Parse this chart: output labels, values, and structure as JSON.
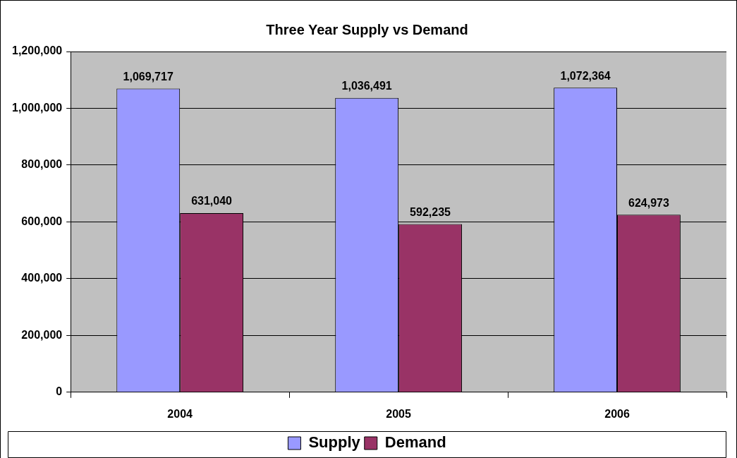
{
  "chart_data": {
    "type": "bar",
    "title": "Three Year Supply vs Demand",
    "categories": [
      "2004",
      "2005",
      "2006"
    ],
    "series": [
      {
        "name": "Supply",
        "color": "#9999ff",
        "values": [
          1069717,
          1036491,
          1072364
        ],
        "value_labels": [
          "1,069,717",
          "1,036,491",
          "1,072,364"
        ]
      },
      {
        "name": "Demand",
        "color": "#993366",
        "values": [
          631040,
          592235,
          624973
        ],
        "value_labels": [
          "631,040",
          "592,235",
          "624,973"
        ]
      }
    ],
    "ylim": [
      0,
      1200000
    ],
    "yticks": [
      {
        "value": 0,
        "label": "0"
      },
      {
        "value": 200000,
        "label": "200,000"
      },
      {
        "value": 400000,
        "label": "400,000"
      },
      {
        "value": 600000,
        "label": "600,000"
      },
      {
        "value": 800000,
        "label": "800,000"
      },
      {
        "value": 1000000,
        "label": "1,000,000"
      },
      {
        "value": 1200000,
        "label": "1,200,000"
      }
    ],
    "grid": "y",
    "legend": "bottom"
  }
}
